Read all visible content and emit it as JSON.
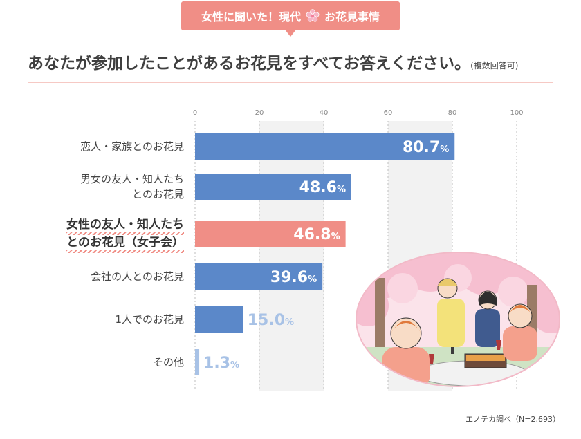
{
  "badge": {
    "text_before": "女性に聞いた！現代",
    "text_after": "お花見事情",
    "flower_icon": "sakura-icon"
  },
  "heading": {
    "question": "あなたが参加したことがあるお花見をすべてお答えください。",
    "note": "(複数回答可)"
  },
  "source": "エノテカ調べ（N=2,693）",
  "colors": {
    "bar": "#5b88c9",
    "highlight": "#f08e86",
    "small_bar": "#a8c2e6",
    "grid_band": "#f2f2f2"
  },
  "chart_data": {
    "type": "bar",
    "orientation": "horizontal",
    "categories": [
      "恋人・家族とのお花見",
      "男女の友人・知人たち\nとのお花見",
      "女性の友人・知人たち\nとのお花見（女子会）",
      "会社の人とのお花見",
      "1人でのお花見",
      "その他"
    ],
    "values": [
      80.7,
      48.6,
      46.8,
      39.6,
      15.0,
      1.3
    ],
    "value_labels": [
      "80.7",
      "48.6",
      "46.8",
      "39.6",
      "15.0",
      "1.3"
    ],
    "unit": "%",
    "highlight_index": 2,
    "xlim": [
      0,
      100
    ],
    "ticks": [
      0,
      20,
      40,
      60,
      80,
      100
    ],
    "tick_labels": [
      "0",
      "20",
      "40",
      "60",
      "80",
      "100"
    ]
  }
}
